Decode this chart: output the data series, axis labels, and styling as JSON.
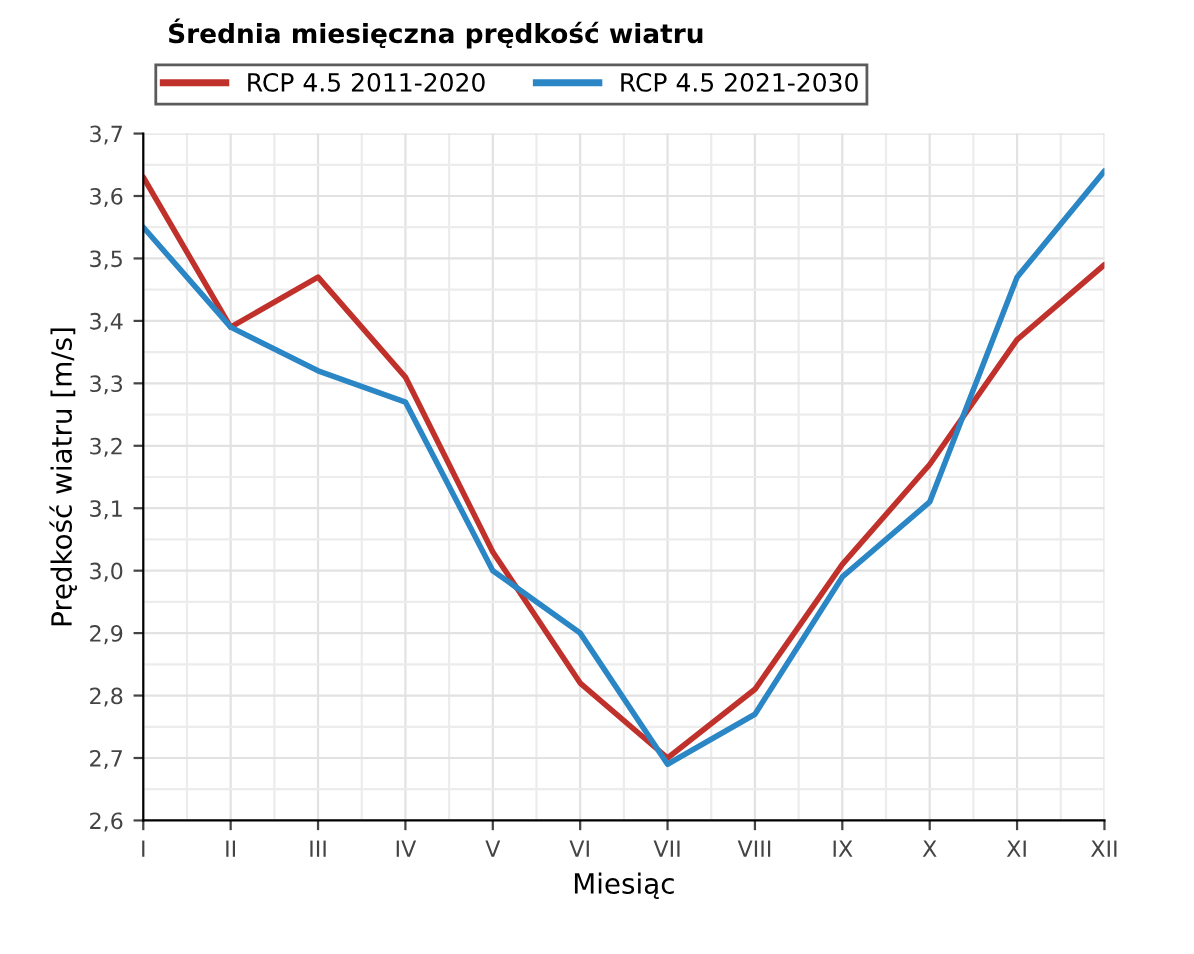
{
  "chart_data": {
    "type": "line",
    "title": "Średnia miesięczna prędkość wiatru",
    "xlabel": "Miesiąc",
    "ylabel": "Prędkość wiatru [m/s]",
    "categories": [
      "I",
      "II",
      "III",
      "IV",
      "V",
      "VI",
      "VII",
      "VIII",
      "IX",
      "X",
      "XI",
      "XII"
    ],
    "series": [
      {
        "name": "RCP 4.5 2011-2020",
        "color": "#c0312b",
        "values": [
          3.63,
          3.39,
          3.47,
          3.31,
          3.03,
          2.82,
          2.7,
          2.81,
          3.01,
          3.17,
          3.37,
          3.49
        ]
      },
      {
        "name": "RCP 4.5 2021-2030",
        "color": "#2a86c5",
        "values": [
          3.55,
          3.39,
          3.32,
          3.27,
          3.0,
          2.9,
          2.69,
          2.77,
          2.99,
          3.11,
          3.47,
          3.64
        ]
      }
    ],
    "ylim": [
      2.6,
      3.7
    ],
    "yticks": [
      {
        "value": 2.6,
        "label": "2,6"
      },
      {
        "value": 2.7,
        "label": "2,7"
      },
      {
        "value": 2.8,
        "label": "2,8"
      },
      {
        "value": 2.9,
        "label": "2,9"
      },
      {
        "value": 3.0,
        "label": "3,0"
      },
      {
        "value": 3.1,
        "label": "3,1"
      },
      {
        "value": 3.2,
        "label": "3,2"
      },
      {
        "value": 3.3,
        "label": "3,3"
      },
      {
        "value": 3.4,
        "label": "3,4"
      },
      {
        "value": 3.5,
        "label": "3,5"
      },
      {
        "value": 3.6,
        "label": "3,6"
      },
      {
        "value": 3.7,
        "label": "3,7"
      }
    ],
    "grid": true,
    "legend": "top",
    "marker": "none",
    "line_style": "solid"
  }
}
